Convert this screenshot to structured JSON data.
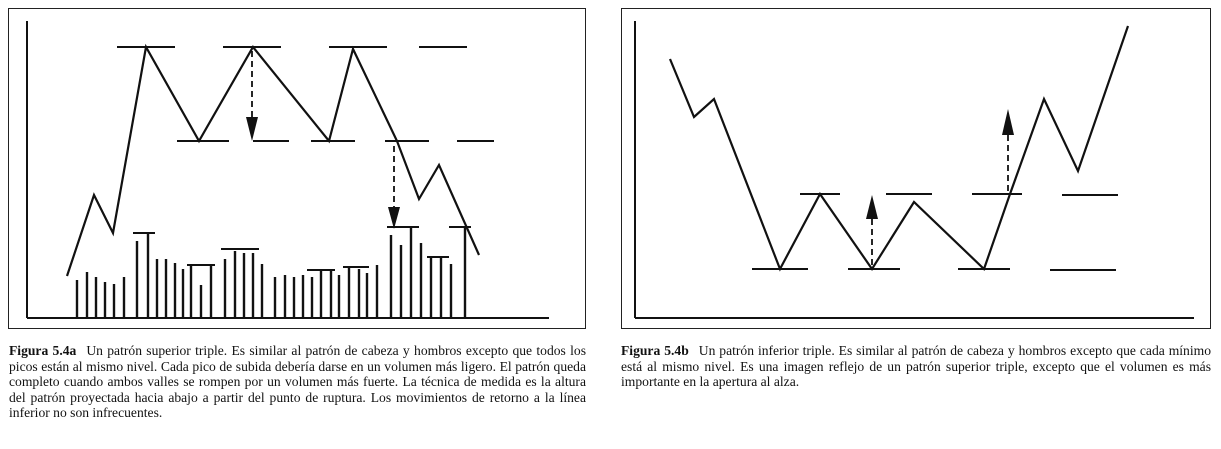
{
  "figure_a": {
    "label": "Figura 5.4a",
    "caption": "Un patrón superior triple. Es similar al patrón de cabeza y hombros excepto que todos los picos están al mismo nivel. Cada pico de subida debería darse en un volumen más ligero. El patrón queda completo cuando ambos valles se rompen por un volumen más fuerte. La técnica de  medida es la altura del patrón proyectada hacia abajo a partir del punto de ruptura. Los movimientos de retorno a la línea inferior no son infrecuentes.",
    "pattern": "triple-top",
    "line_color": "#111111"
  },
  "figure_b": {
    "label": "Figura 5.4b",
    "caption": "Un patrón inferior triple. Es similar al patrón de cabeza y hombros excepto que cada mínimo está al mismo nivel. Es una imagen reflejo de un patrón superior triple, excepto que el volumen es más importante en la apertura al alza.",
    "pattern": "triple-bottom",
    "line_color": "#111111"
  }
}
